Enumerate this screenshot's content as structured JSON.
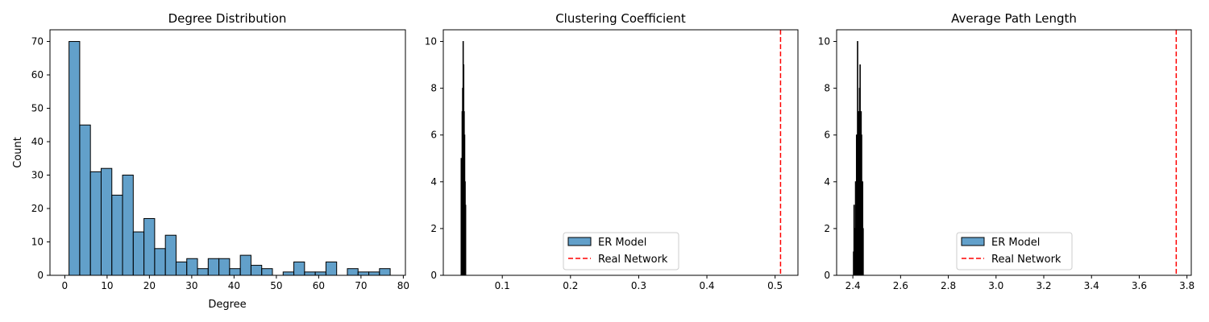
{
  "colors": {
    "bar_fill": "#1f77b4",
    "bar_fill_opacity": 0.7,
    "bar_edge": "#000000",
    "real_line": "#ff0000"
  },
  "chart_data": [
    {
      "type": "bar",
      "title": "Degree Distribution",
      "xlabel": "Degree",
      "ylabel": "Count",
      "xlim": [
        -3.5,
        80.5
      ],
      "ylim": [
        0,
        73.5
      ],
      "xticks": [
        0,
        10,
        20,
        30,
        40,
        50,
        60,
        70,
        80
      ],
      "yticks": [
        0,
        10,
        20,
        30,
        40,
        50,
        60,
        70
      ],
      "bin_start": 1,
      "bin_width": 2.53,
      "values": [
        70,
        45,
        31,
        32,
        24,
        30,
        13,
        17,
        8,
        12,
        4,
        5,
        2,
        5,
        5,
        2,
        6,
        3,
        2,
        0,
        1,
        4,
        1,
        1,
        4,
        0,
        2,
        1,
        1,
        2
      ]
    },
    {
      "type": "bar",
      "title": "Clustering Coefficient",
      "xlabel": "",
      "ylabel": "",
      "xlim": [
        0.0135,
        0.5335
      ],
      "ylim": [
        0,
        10.5
      ],
      "xticks": [
        0.1,
        0.2,
        0.3,
        0.4,
        0.5
      ],
      "yticks": [
        0,
        2,
        4,
        6,
        8,
        10
      ],
      "bin_start": 0.0395,
      "bin_width": 0.0007,
      "values": [
        5,
        4,
        7,
        8,
        10,
        9,
        7,
        6,
        4,
        3
      ],
      "reference_line": {
        "x": 0.508
      },
      "legend": {
        "entries": [
          "ER Model",
          "Real Network"
        ],
        "loc": "lower center"
      }
    },
    {
      "type": "bar",
      "title": "Average Path Length",
      "xlabel": "",
      "ylabel": "",
      "xlim": [
        2.332,
        3.818
      ],
      "ylim": [
        0,
        10.5
      ],
      "xticks": [
        2.4,
        2.6,
        2.8,
        3.0,
        3.2,
        3.4,
        3.6,
        3.8
      ],
      "yticks": [
        0,
        2,
        4,
        6,
        8,
        10
      ],
      "bin_start": 2.402,
      "bin_width": 0.0021,
      "values": [
        1,
        3,
        2,
        2,
        4,
        4,
        6,
        6,
        10,
        7,
        5,
        7,
        8,
        9,
        4,
        7,
        6,
        2,
        4,
        2
      ],
      "reference_line": {
        "x": 3.755
      },
      "legend": {
        "entries": [
          "ER Model",
          "Real Network"
        ],
        "loc": "lower center"
      }
    }
  ]
}
